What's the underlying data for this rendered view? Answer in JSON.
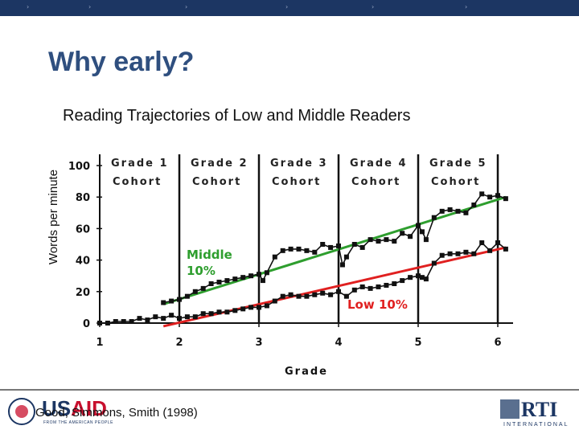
{
  "slide": {
    "title": "Why early?",
    "subtitle": "Reading Trajectories of Low and Middle Readers",
    "citation": "Good, Simmons, Smith (1998)"
  },
  "logos": {
    "usaid": {
      "word_us": "US",
      "word_aid": "AID",
      "tagline": "FROM THE AMERICAN PEOPLE"
    },
    "rti": {
      "word": "RTI",
      "sub": "INTERNATIONAL"
    }
  },
  "colors": {
    "topbar": "#1c3663",
    "title": "#2f4f7f",
    "middle_trend": "#2e9e2e",
    "low_trend": "#e02020",
    "data": "#111111",
    "annotation_middle": "#2e9e2e",
    "annotation_low": "#e02020"
  },
  "chart_data": {
    "type": "line",
    "ylabel": "Words per minute",
    "xlabel": "Grade",
    "xlim": [
      1,
      6.2
    ],
    "ylim": [
      0,
      100
    ],
    "x_ticks": [
      "1",
      "2",
      "3",
      "4",
      "5",
      "6"
    ],
    "y_ticks": [
      "0",
      "20",
      "40",
      "60",
      "80",
      "100"
    ],
    "cohorts": [
      {
        "line1": "Grade 1",
        "line2": "Cohort"
      },
      {
        "line1": "Grade 2",
        "line2": "Cohort"
      },
      {
        "line1": "Grade 3",
        "line2": "Cohort"
      },
      {
        "line1": "Grade 4",
        "line2": "Cohort"
      },
      {
        "line1": "Grade 5",
        "line2": "Cohort"
      }
    ],
    "cohort_boundaries": [
      2,
      3,
      4,
      5,
      6
    ],
    "annotations": {
      "middle": [
        "Middle",
        "10%"
      ],
      "low": "Low 10%"
    },
    "series": [
      {
        "name": "Middle",
        "trend": [
          [
            1.8,
            12
          ],
          [
            6.1,
            80
          ]
        ],
        "points": [
          [
            1.8,
            13
          ],
          [
            1.9,
            14
          ],
          [
            2.0,
            15
          ],
          [
            2.1,
            17
          ],
          [
            2.2,
            20
          ],
          [
            2.3,
            22
          ],
          [
            2.4,
            25
          ],
          [
            2.5,
            26
          ],
          [
            2.6,
            27
          ],
          [
            2.7,
            28
          ],
          [
            2.8,
            29
          ],
          [
            2.9,
            30
          ],
          [
            3.0,
            31
          ],
          [
            3.05,
            27
          ],
          [
            3.1,
            32
          ],
          [
            3.2,
            42
          ],
          [
            3.3,
            46
          ],
          [
            3.4,
            47
          ],
          [
            3.5,
            47
          ],
          [
            3.6,
            46
          ],
          [
            3.7,
            45
          ],
          [
            3.8,
            50
          ],
          [
            3.9,
            48
          ],
          [
            4.0,
            49
          ],
          [
            4.05,
            37
          ],
          [
            4.1,
            42
          ],
          [
            4.2,
            50
          ],
          [
            4.3,
            48
          ],
          [
            4.4,
            53
          ],
          [
            4.5,
            52
          ],
          [
            4.6,
            53
          ],
          [
            4.7,
            52
          ],
          [
            4.8,
            57
          ],
          [
            4.9,
            55
          ],
          [
            5.0,
            62
          ],
          [
            5.05,
            58
          ],
          [
            5.1,
            53
          ],
          [
            5.2,
            67
          ],
          [
            5.3,
            71
          ],
          [
            5.4,
            72
          ],
          [
            5.5,
            71
          ],
          [
            5.6,
            70
          ],
          [
            5.7,
            75
          ],
          [
            5.8,
            82
          ],
          [
            5.9,
            80
          ],
          [
            6.0,
            81
          ],
          [
            6.1,
            79
          ]
        ]
      },
      {
        "name": "Low",
        "trend": [
          [
            1.8,
            -2
          ],
          [
            6.1,
            48
          ]
        ],
        "points": [
          [
            1.0,
            0
          ],
          [
            1.1,
            0
          ],
          [
            1.2,
            1
          ],
          [
            1.3,
            1
          ],
          [
            1.4,
            1
          ],
          [
            1.5,
            3
          ],
          [
            1.6,
            2
          ],
          [
            1.7,
            4
          ],
          [
            1.8,
            3
          ],
          [
            1.9,
            5
          ],
          [
            2.0,
            3
          ],
          [
            2.1,
            4
          ],
          [
            2.2,
            4
          ],
          [
            2.3,
            6
          ],
          [
            2.4,
            6
          ],
          [
            2.5,
            7
          ],
          [
            2.6,
            7
          ],
          [
            2.7,
            8
          ],
          [
            2.8,
            9
          ],
          [
            2.9,
            10
          ],
          [
            3.0,
            10
          ],
          [
            3.1,
            11
          ],
          [
            3.2,
            14
          ],
          [
            3.3,
            17
          ],
          [
            3.4,
            18
          ],
          [
            3.5,
            17
          ],
          [
            3.6,
            17
          ],
          [
            3.7,
            18
          ],
          [
            3.8,
            19
          ],
          [
            3.9,
            18
          ],
          [
            4.0,
            20
          ],
          [
            4.1,
            17
          ],
          [
            4.2,
            21
          ],
          [
            4.3,
            23
          ],
          [
            4.4,
            22
          ],
          [
            4.5,
            23
          ],
          [
            4.6,
            24
          ],
          [
            4.7,
            25
          ],
          [
            4.8,
            27
          ],
          [
            4.9,
            29
          ],
          [
            5.0,
            30
          ],
          [
            5.05,
            29
          ],
          [
            5.1,
            28
          ],
          [
            5.2,
            38
          ],
          [
            5.3,
            43
          ],
          [
            5.4,
            44
          ],
          [
            5.5,
            44
          ],
          [
            5.6,
            45
          ],
          [
            5.7,
            44
          ],
          [
            5.8,
            51
          ],
          [
            5.9,
            46
          ],
          [
            6.0,
            51
          ],
          [
            6.1,
            47
          ]
        ]
      }
    ]
  }
}
